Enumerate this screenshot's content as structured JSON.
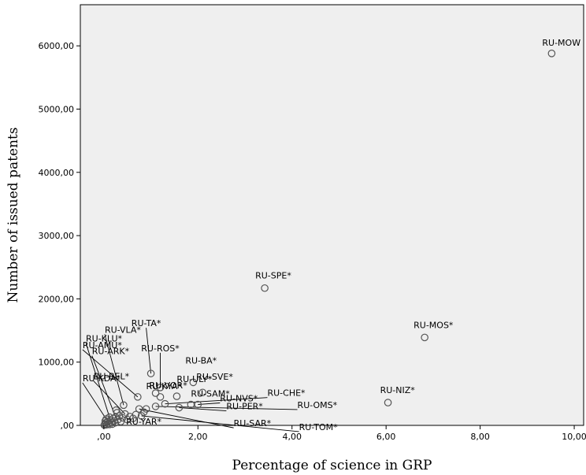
{
  "chart_data": {
    "type": "scatter",
    "xlabel": "Percentage of science in GRP",
    "ylabel": "Number of issued patents",
    "xlim": [
      -0.5,
      10.2
    ],
    "ylim": [
      0,
      6650
    ],
    "x_ticks": [
      ",00",
      "2,00",
      "4,00",
      "6,00",
      "8,00",
      "10,00"
    ],
    "y_ticks": [
      ",00",
      "1000,00",
      "2000,00",
      "3000,00",
      "4000,00",
      "5000,00",
      "6000,00"
    ],
    "x_tick_values": [
      0,
      2,
      4,
      6,
      8,
      10
    ],
    "y_tick_values": [
      0,
      1000,
      2000,
      3000,
      4000,
      5000,
      6000
    ],
    "grid": false,
    "colors": {
      "plot_background": "#efefef",
      "marker": "#555555"
    },
    "points": [
      {
        "x": 9.52,
        "y": 5880,
        "label": "RU-MOW"
      },
      {
        "x": 3.42,
        "y": 2170,
        "label": "RU-SPE*"
      },
      {
        "x": 6.82,
        "y": 1390,
        "label": "RU-MOS*"
      },
      {
        "x": 6.04,
        "y": 360,
        "label": "RU-NIZ*"
      },
      {
        "x": 1.0,
        "y": 820,
        "label": "RU-TA*"
      },
      {
        "x": 1.2,
        "y": 600,
        "label": "RU-ROS*"
      },
      {
        "x": 1.9,
        "y": 680,
        "label": "RU-BA*"
      },
      {
        "x": 1.2,
        "y": 450,
        "label": "RU-KYA*"
      },
      {
        "x": 1.1,
        "y": 510,
        "label": "RU-VOR*"
      },
      {
        "x": 2.1,
        "y": 520,
        "label": "RU-SVE*"
      },
      {
        "x": 1.55,
        "y": 460,
        "label": "RU-ULY*"
      },
      {
        "x": 1.85,
        "y": 330,
        "label": "RU-SAM*"
      },
      {
        "x": 2.0,
        "y": 330,
        "label": "RU-NVS*"
      },
      {
        "x": 1.3,
        "y": 340,
        "label": "RU-CHE*"
      },
      {
        "x": 1.6,
        "y": 280,
        "label": "RU-PER*"
      },
      {
        "x": 1.1,
        "y": 300,
        "label": "RU-OMS*"
      },
      {
        "x": 0.85,
        "y": 210,
        "label": "RU-YAR*"
      },
      {
        "x": 0.75,
        "y": 260,
        "label": "RU-SAR*"
      },
      {
        "x": 0.8,
        "y": 150,
        "label": "RU-TOM*"
      },
      {
        "x": 0.12,
        "y": 130,
        "label": "RU-KLU*"
      },
      {
        "x": 0.25,
        "y": 130,
        "label": "RU-ARK*"
      },
      {
        "x": 0.42,
        "y": 320,
        "label": "RU-VLA*"
      },
      {
        "x": 0.05,
        "y": 100,
        "label": "RU-KDA*"
      },
      {
        "x": 0.72,
        "y": 450,
        "label": "RU-AMU*"
      },
      {
        "x": 0.45,
        "y": 180,
        "label": "RU-BEL*"
      },
      {
        "x": 0.02,
        "y": 20,
        "label": ""
      },
      {
        "x": 0.04,
        "y": 40,
        "label": ""
      },
      {
        "x": 0.06,
        "y": 10,
        "label": ""
      },
      {
        "x": 0.08,
        "y": 60,
        "label": ""
      },
      {
        "x": 0.1,
        "y": 30,
        "label": ""
      },
      {
        "x": 0.14,
        "y": 80,
        "label": ""
      },
      {
        "x": 0.16,
        "y": 50,
        "label": ""
      },
      {
        "x": 0.18,
        "y": 20,
        "label": ""
      },
      {
        "x": 0.2,
        "y": 110,
        "label": ""
      },
      {
        "x": 0.22,
        "y": 70,
        "label": ""
      },
      {
        "x": 0.24,
        "y": 40,
        "label": ""
      },
      {
        "x": 0.28,
        "y": 200,
        "label": ""
      },
      {
        "x": 0.3,
        "y": 90,
        "label": ""
      },
      {
        "x": 0.33,
        "y": 150,
        "label": ""
      },
      {
        "x": 0.36,
        "y": 60,
        "label": ""
      },
      {
        "x": 0.4,
        "y": 120,
        "label": ""
      },
      {
        "x": 0.5,
        "y": 90,
        "label": ""
      },
      {
        "x": 0.55,
        "y": 140,
        "label": ""
      },
      {
        "x": 0.62,
        "y": 110,
        "label": ""
      },
      {
        "x": 0.68,
        "y": 170,
        "label": ""
      },
      {
        "x": 0.9,
        "y": 260,
        "label": ""
      },
      {
        "x": 0.01,
        "y": 5,
        "label": ""
      },
      {
        "x": 0.03,
        "y": 70,
        "label": ""
      },
      {
        "x": 0.12,
        "y": 15,
        "label": ""
      },
      {
        "x": 0.26,
        "y": 240,
        "label": ""
      }
    ],
    "labeled_points_with_leader": [
      "RU-KLU*",
      "RU-ARK*",
      "RU-VLA*",
      "RU-KDA*",
      "RU-AMU*",
      "RU-BEL*",
      "RU-TA*",
      "RU-ROS*",
      "RU-CHE*",
      "RU-NVS*",
      "RU-OMS*",
      "RU-PER*",
      "RU-TOM*",
      "RU-SAR*"
    ]
  }
}
